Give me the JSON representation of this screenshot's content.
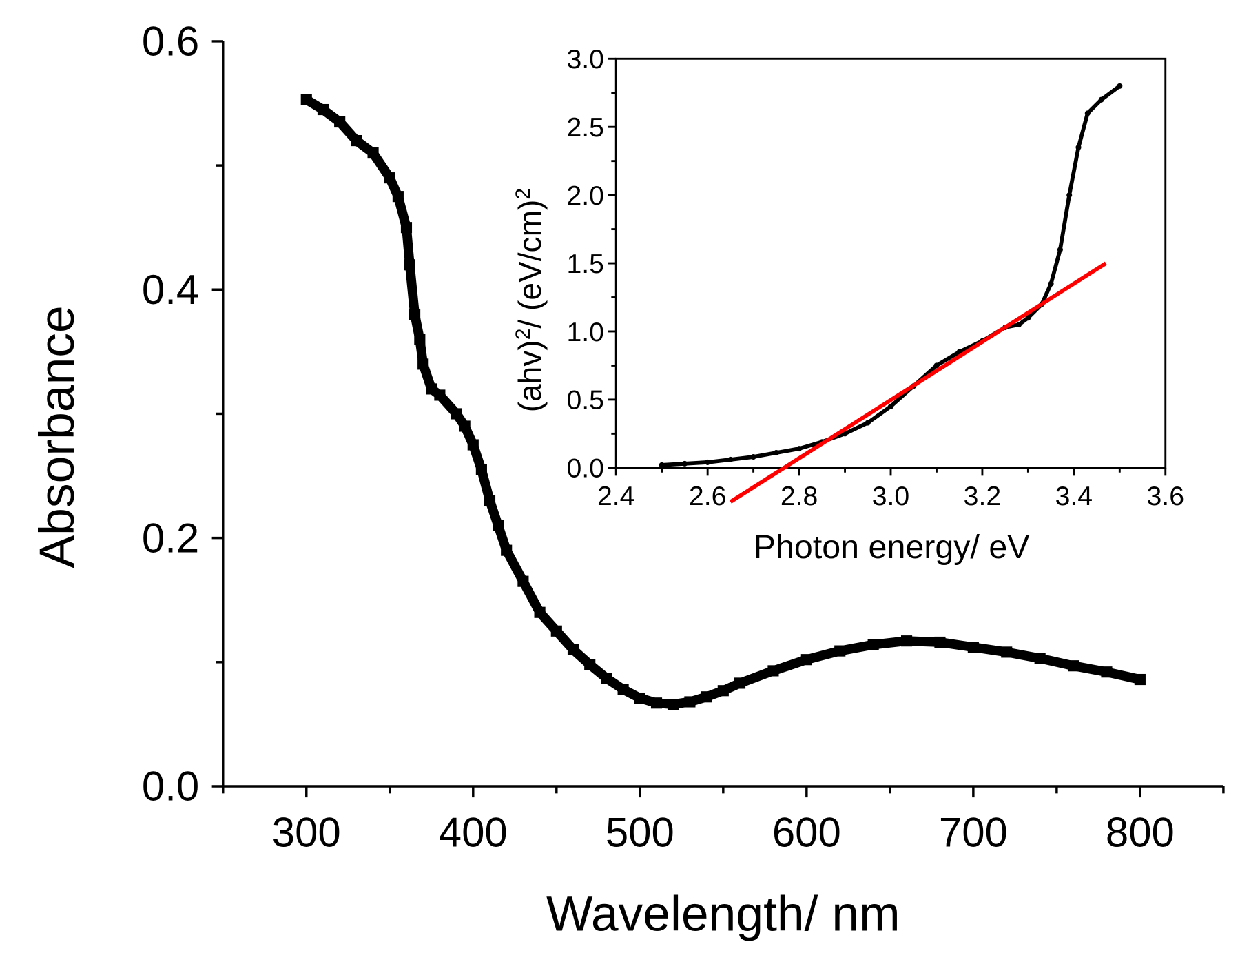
{
  "chart_data": [
    {
      "type": "scatter",
      "xlabel": "Wavelength/ nm",
      "ylabel": "Absorbance",
      "xlim": [
        250,
        850
      ],
      "ylim": [
        0,
        0.6
      ],
      "xticks": [
        "300",
        "400",
        "500",
        "600",
        "700",
        "800"
      ],
      "xtick_values": [
        300,
        400,
        500,
        600,
        700,
        800
      ],
      "yticks": [
        "0.0",
        "0.2",
        "0.4",
        "0.6"
      ],
      "ytick_values": [
        0,
        0.2,
        0.4,
        0.6
      ],
      "series": [
        {
          "name": "Absorbance",
          "color": "#000000",
          "x": [
            300,
            310,
            320,
            330,
            340,
            350,
            355,
            360,
            362,
            365,
            368,
            370,
            375,
            380,
            390,
            395,
            400,
            405,
            410,
            415,
            420,
            430,
            440,
            450,
            460,
            470,
            480,
            490,
            500,
            510,
            520,
            530,
            540,
            550,
            560,
            580,
            600,
            620,
            640,
            660,
            680,
            700,
            720,
            740,
            760,
            780,
            800
          ],
          "y": [
            0.553,
            0.545,
            0.535,
            0.52,
            0.51,
            0.49,
            0.475,
            0.45,
            0.42,
            0.38,
            0.36,
            0.34,
            0.32,
            0.315,
            0.3,
            0.29,
            0.275,
            0.255,
            0.23,
            0.21,
            0.19,
            0.165,
            0.14,
            0.125,
            0.11,
            0.098,
            0.087,
            0.078,
            0.071,
            0.067,
            0.066,
            0.068,
            0.072,
            0.077,
            0.083,
            0.093,
            0.102,
            0.109,
            0.114,
            0.117,
            0.116,
            0.112,
            0.108,
            0.103,
            0.097,
            0.092,
            0.086
          ]
        }
      ]
    },
    {
      "type": "line",
      "xlabel": "Photon energy/ eV",
      "ylabel": "(ahv)²/ (eV/cm)²",
      "ylabel_main": "(ahv)",
      "ylabel_sup": "2",
      "ylabel_mid": "/ (eV/cm)",
      "xlim": [
        2.4,
        3.6
      ],
      "ylim": [
        0,
        3.0
      ],
      "xticks": [
        "2.4",
        "2.6",
        "2.8",
        "3.0",
        "3.2",
        "3.4",
        "3.6"
      ],
      "xtick_values": [
        2.4,
        2.6,
        2.8,
        3.0,
        3.2,
        3.4,
        3.6
      ],
      "yticks": [
        "0.0",
        "0.5",
        "1.0",
        "1.5",
        "2.0",
        "2.5",
        "3.0"
      ],
      "ytick_values": [
        0,
        0.5,
        1.0,
        1.5,
        2.0,
        2.5,
        3.0
      ],
      "series": [
        {
          "name": "(ahv)^2",
          "color": "#000000",
          "x": [
            2.5,
            2.55,
            2.6,
            2.65,
            2.7,
            2.75,
            2.8,
            2.85,
            2.9,
            2.95,
            3.0,
            3.05,
            3.1,
            3.15,
            3.2,
            3.25,
            3.28,
            3.3,
            3.33,
            3.35,
            3.37,
            3.39,
            3.41,
            3.43,
            3.46,
            3.5
          ],
          "y": [
            0.02,
            0.03,
            0.04,
            0.06,
            0.08,
            0.11,
            0.14,
            0.19,
            0.25,
            0.33,
            0.45,
            0.6,
            0.75,
            0.85,
            0.93,
            1.03,
            1.05,
            1.1,
            1.2,
            1.35,
            1.6,
            2.0,
            2.35,
            2.6,
            2.7,
            2.8
          ]
        },
        {
          "name": "linear fit",
          "color": "#ff0000",
          "x": [
            2.65,
            3.47
          ],
          "y": [
            -0.25,
            1.5
          ]
        }
      ]
    }
  ]
}
